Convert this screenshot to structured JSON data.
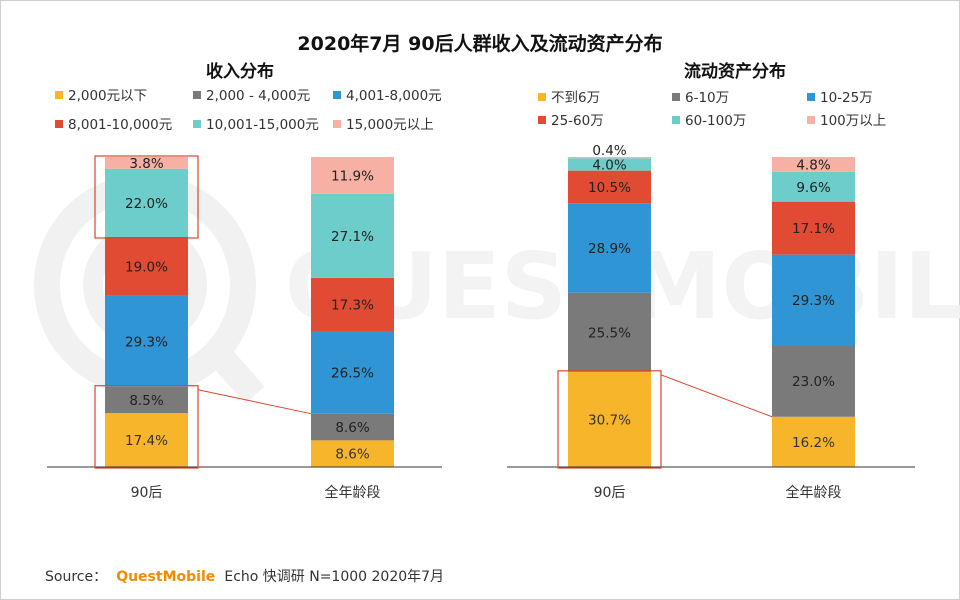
{
  "title": "2020年7月 90后人群收入及流动资产分布",
  "watermark": "QUESTMOBILE",
  "source": {
    "prefix": "Source：",
    "brand": "QuestMobile",
    "rest": "Echo 快调研 N=1000 2020年7月"
  },
  "colors": {
    "highlight_box": "#d9472b",
    "axis": "#333333"
  },
  "chart_data": [
    {
      "type": "bar",
      "stacked": true,
      "percent_stacked": true,
      "title": "收入分布",
      "categories": [
        "90后",
        "全年龄段"
      ],
      "legend_position": "top",
      "series": [
        {
          "name": "2,000元以下",
          "color": "#f7b52c",
          "label_color": "#333333",
          "values": [
            17.4,
            8.6
          ]
        },
        {
          "name": "2,000 - 4,000元",
          "color": "#7a7a7a",
          "label_color": "#222222",
          "values": [
            8.5,
            8.6
          ]
        },
        {
          "name": "4,001-8,000元",
          "color": "#2f95d5",
          "label_color": "#222222",
          "values": [
            29.3,
            26.5
          ]
        },
        {
          "name": "8,001-10,000元",
          "color": "#e14b33",
          "label_color": "#222222",
          "values": [
            19.0,
            17.3
          ]
        },
        {
          "name": "10,001-15,000元",
          "color": "#6dcdca",
          "label_color": "#222222",
          "values": [
            22.0,
            27.1
          ]
        },
        {
          "name": "15,000元以上",
          "color": "#f6b0a4",
          "label_color": "#222222",
          "values": [
            3.8,
            11.9
          ]
        }
      ],
      "data_labels": [
        [
          "17.4%",
          "8.6%"
        ],
        [
          "8.5%",
          "8.6%"
        ],
        [
          "29.3%",
          "26.5%"
        ],
        [
          "19.0%",
          "17.3%"
        ],
        [
          "22.0%",
          "27.1%"
        ],
        [
          "3.8%",
          "11.9%"
        ]
      ],
      "highlight_boxes": [
        {
          "category": 0,
          "from_series": 4,
          "to_series": 5
        },
        {
          "category": 0,
          "from_series": 0,
          "to_series": 1
        }
      ],
      "connector": {
        "from_category": 0,
        "to_category": 1,
        "series_boundary": 2
      }
    },
    {
      "type": "bar",
      "stacked": true,
      "percent_stacked": true,
      "title": "流动资产分布",
      "categories": [
        "90后",
        "全年龄段"
      ],
      "legend_position": "top",
      "series": [
        {
          "name": "不到6万",
          "color": "#f7b52c",
          "label_color": "#333333",
          "values": [
            30.7,
            16.2
          ]
        },
        {
          "name": "6-10万",
          "color": "#7a7a7a",
          "label_color": "#222222",
          "values": [
            25.5,
            23.0
          ]
        },
        {
          "name": "10-25万",
          "color": "#2f95d5",
          "label_color": "#222222",
          "values": [
            28.9,
            29.3
          ]
        },
        {
          "name": "25-60万",
          "color": "#e14b33",
          "label_color": "#222222",
          "values": [
            10.5,
            17.1
          ]
        },
        {
          "name": "60-100万",
          "color": "#6dcdca",
          "label_color": "#222222",
          "values": [
            4.0,
            9.6
          ]
        },
        {
          "name": "100万以上",
          "color": "#f6b0a4",
          "label_color": "#222222",
          "values": [
            0.4,
            4.8
          ]
        }
      ],
      "data_labels": [
        [
          "30.7%",
          "16.2%"
        ],
        [
          "25.5%",
          "23.0%"
        ],
        [
          "28.9%",
          "29.3%"
        ],
        [
          "10.5%",
          "17.1%"
        ],
        [
          "4.0%",
          "9.6%"
        ],
        [
          "0.4%",
          "4.8%"
        ]
      ],
      "highlight_boxes": [
        {
          "category": 0,
          "from_series": 0,
          "to_series": 0
        }
      ],
      "connector": {
        "from_category": 0,
        "to_category": 1,
        "series_boundary": 1
      }
    }
  ]
}
